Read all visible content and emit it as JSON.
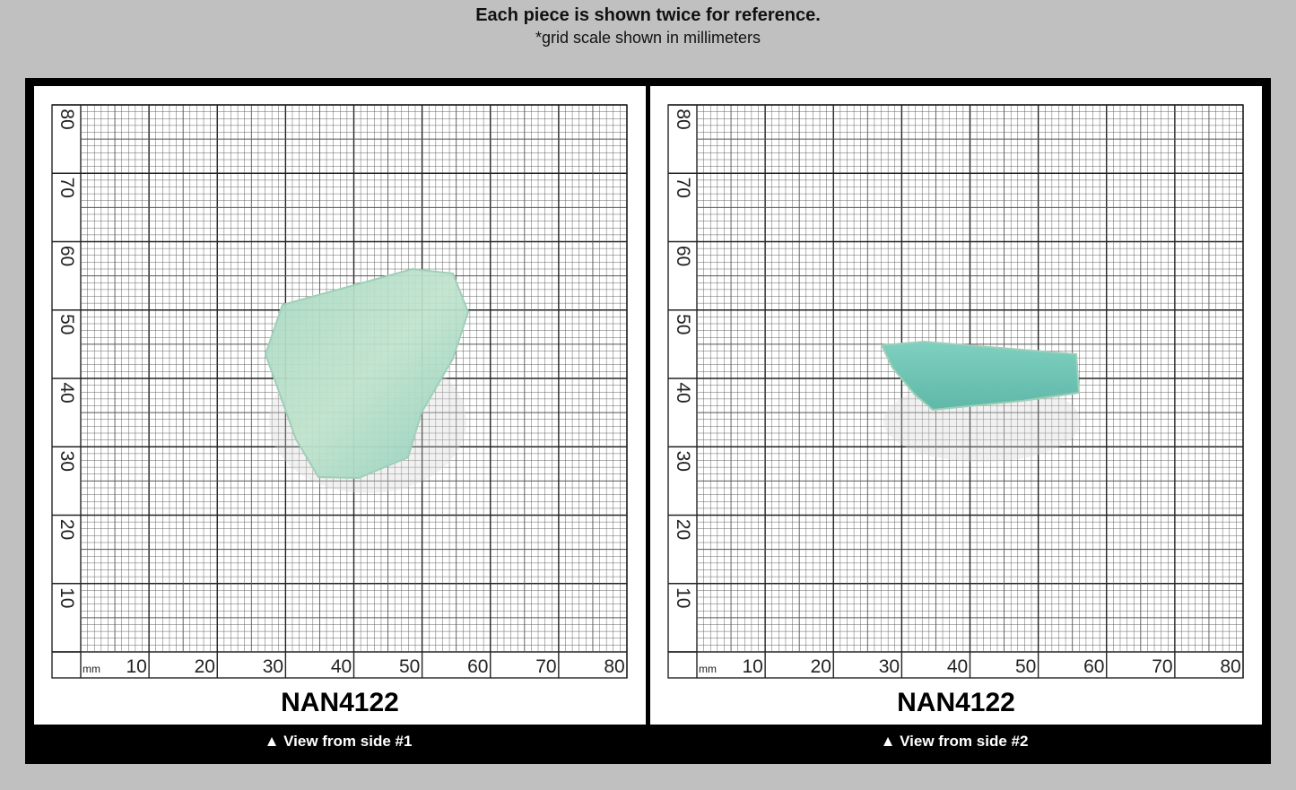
{
  "header": {
    "title": "Each piece is shown twice for reference.",
    "subtitle": "*grid scale shown in millimeters"
  },
  "panels": [
    {
      "unit": "mm",
      "x_labels": [
        10,
        20,
        30,
        40,
        50,
        60,
        70,
        80
      ],
      "y_labels": [
        10,
        20,
        30,
        40,
        50,
        60,
        70,
        80
      ],
      "specimen": "NAN4122",
      "caption": "▲ View from side #1"
    },
    {
      "unit": "mm",
      "x_labels": [
        10,
        20,
        30,
        40,
        50,
        60,
        70,
        80
      ],
      "y_labels": [
        10,
        20,
        30,
        40,
        50,
        60,
        70,
        80
      ],
      "specimen": "NAN4122",
      "caption": "▲ View from side #2"
    }
  ]
}
